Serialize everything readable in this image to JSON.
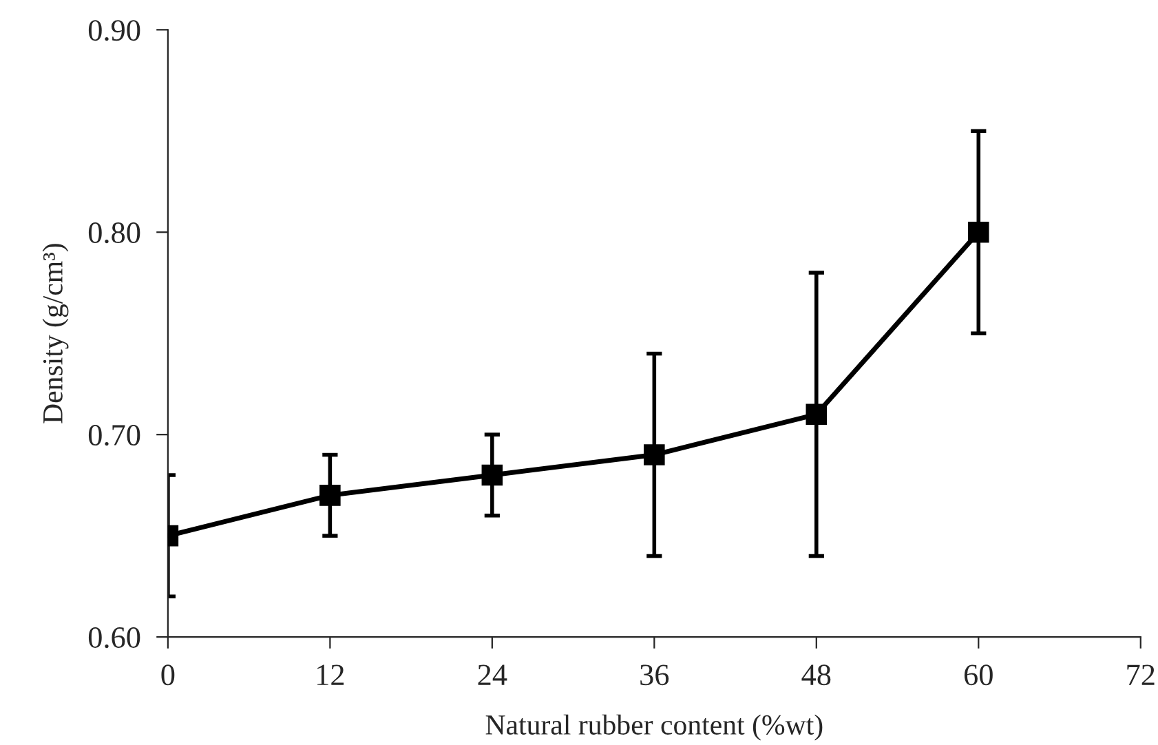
{
  "chart_data": {
    "type": "line",
    "xlabel": "Natural rubber content (%wt)",
    "ylabel": "Density (g/cm³)",
    "x": [
      0,
      12,
      24,
      36,
      48,
      60
    ],
    "series": [
      {
        "color": "#000000",
        "values": [
          0.65,
          0.67,
          0.68,
          0.69,
          0.71,
          0.8
        ],
        "errors": [
          0.03,
          0.02,
          0.02,
          0.05,
          0.07,
          0.05
        ]
      }
    ],
    "xlim": [
      0,
      72
    ],
    "xticks": [
      0,
      12,
      24,
      36,
      48,
      60,
      72
    ],
    "ylim": [
      0.6,
      0.9
    ],
    "yticks": [
      {
        "value": 0.6,
        "label": "0.60"
      },
      {
        "value": 0.7,
        "label": "0.70"
      },
      {
        "value": 0.8,
        "label": "0.80"
      },
      {
        "value": 0.9,
        "label": "0.90"
      }
    ],
    "marker": "square",
    "line_style": "solid",
    "grid": false,
    "legend": false
  }
}
